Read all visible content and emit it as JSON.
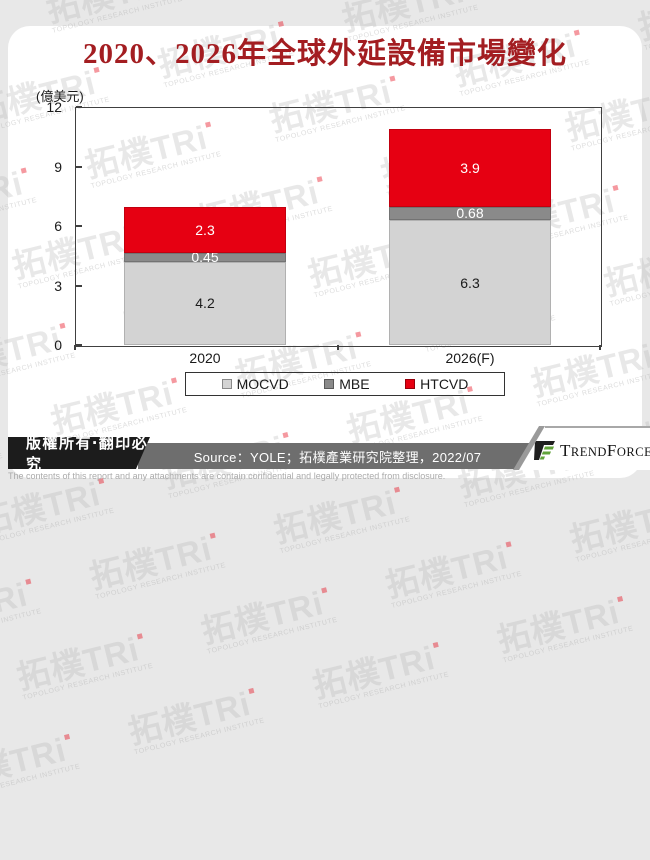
{
  "title": "2020、2026年全球外延設備市場變化",
  "unit_label": "(億美元)",
  "chart_data": {
    "type": "bar",
    "stacked": true,
    "title": "2020、2026年全球外延設備市場變化",
    "ylabel": "(億美元)",
    "categories": [
      "2020",
      "2026(F)"
    ],
    "series": [
      {
        "name": "MOCVD",
        "color": "#d3d3d3",
        "label_color": "#1a1a1a",
        "values": [
          4.2,
          6.3
        ]
      },
      {
        "name": "MBE",
        "color": "#8a8a8a",
        "label_color": "#ffffff",
        "values": [
          0.45,
          0.68
        ]
      },
      {
        "name": "HTCVD",
        "color": "#e60012",
        "label_color": "#ffffff",
        "values": [
          2.3,
          3.9
        ]
      }
    ],
    "ylim": [
      0,
      12
    ],
    "yticks": [
      0,
      3,
      6,
      9,
      12
    ],
    "legend_position": "bottom",
    "grid": false
  },
  "watermark": {
    "main": "拓樸TRi",
    "sub": "TOPOLOGY RESEARCH INSTITUTE"
  },
  "footer": {
    "copyright": "版權所有‧翻印必究",
    "source": "Source：YOLE；拓樸產業研究院整理，2022/07",
    "disclaimer": "The contents of this report and any attachments are contain confidential and legally protected from disclosure.",
    "brand_parts": [
      "T",
      "REND",
      "F",
      "ORCE"
    ]
  },
  "colors": {
    "title_red": "#a31d21",
    "bar_red": "#e60012",
    "bar_light_gray": "#d3d3d3",
    "bar_dark_gray": "#8a8a8a",
    "footer_black": "#1c1c1c",
    "footer_gray": "#6e6e6e",
    "brand_green": "#61a33a",
    "brand_black": "#1f1f1f"
  }
}
